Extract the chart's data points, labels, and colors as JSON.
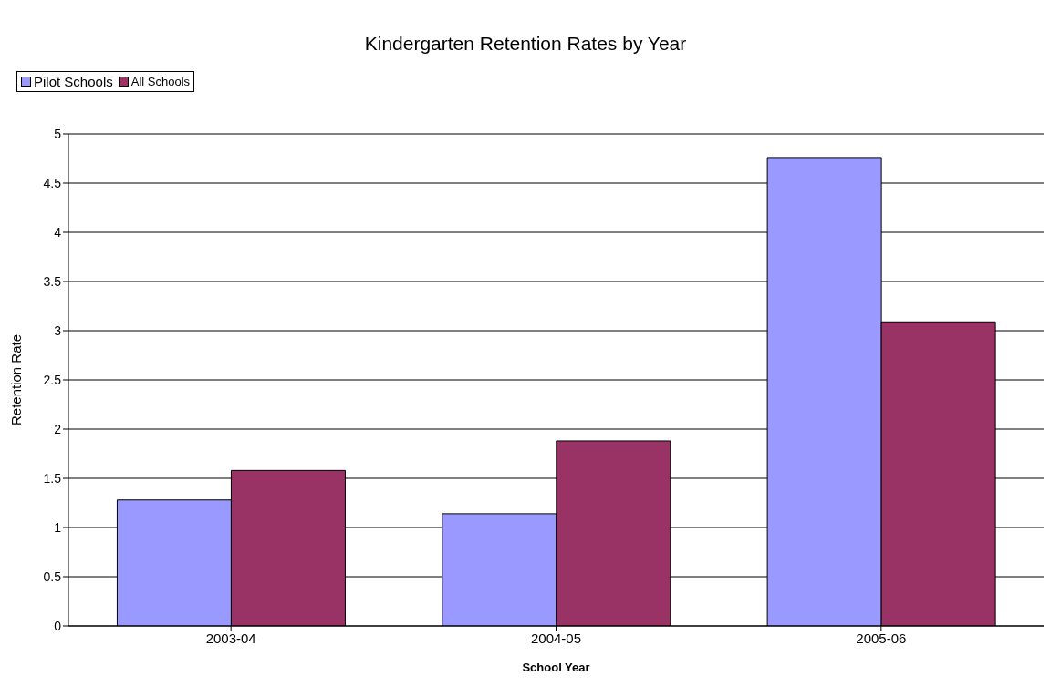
{
  "chart_data": {
    "type": "bar",
    "title": "Kindergarten Retention Rates by Year",
    "xlabel": "School Year",
    "ylabel": "Retention Rate",
    "categories": [
      "2003-04",
      "2004-05",
      "2005-06"
    ],
    "series": [
      {
        "name": "Pilot Schools",
        "color": "#9999ff",
        "values": [
          1.28,
          1.14,
          4.76
        ]
      },
      {
        "name": "All Schools",
        "color": "#993366",
        "values": [
          1.58,
          1.88,
          3.09
        ]
      }
    ],
    "ylim": [
      0,
      5
    ],
    "yticks": [
      0,
      0.5,
      1,
      1.5,
      2,
      2.5,
      3,
      3.5,
      4,
      4.5,
      5
    ],
    "grid": "y",
    "legend": "top"
  }
}
